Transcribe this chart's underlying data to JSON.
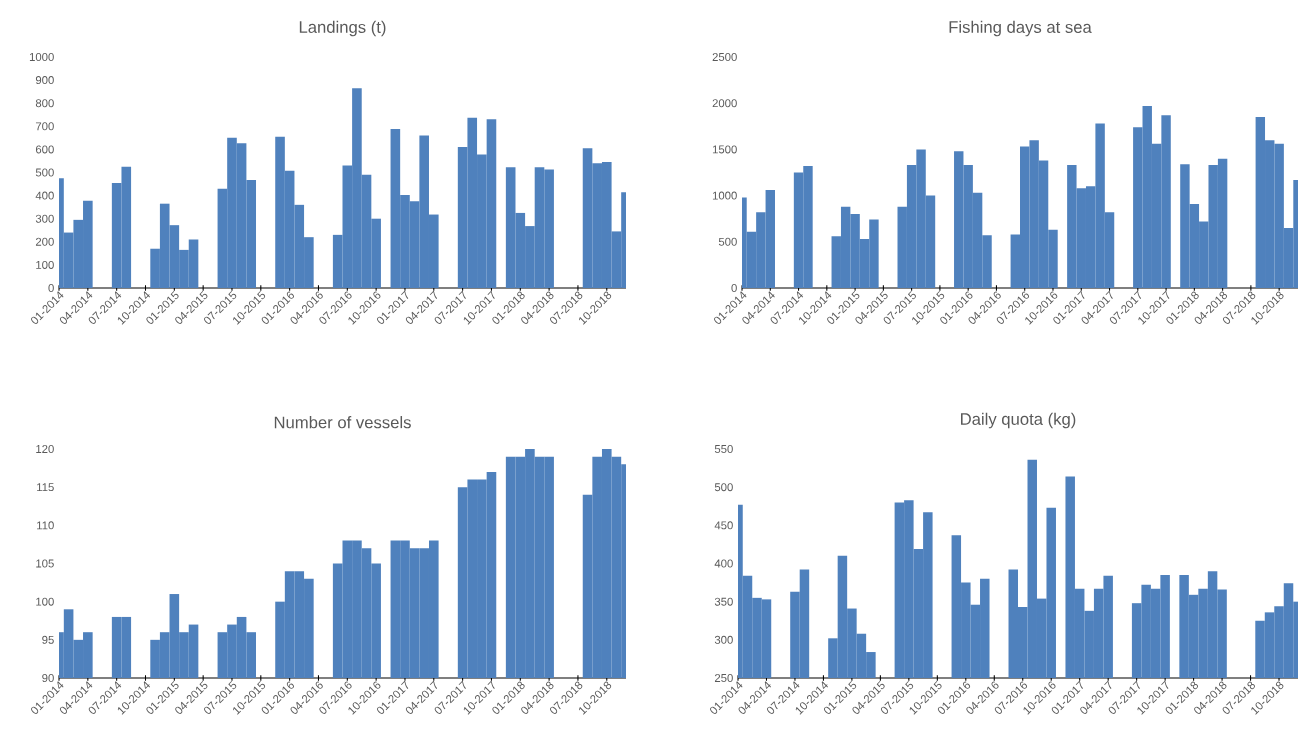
{
  "chart_data": [
    {
      "type": "bar",
      "title": "Landings (t)",
      "color": "#4f81bd",
      "ylim": [
        0,
        1000
      ],
      "yticks": [
        0,
        100,
        200,
        300,
        400,
        500,
        600,
        700,
        800,
        900,
        1000
      ],
      "categories": [
        "01-2014",
        null,
        null,
        "04-2014",
        null,
        null,
        "07-2014",
        null,
        null,
        "10-2014",
        null,
        null,
        "01-2015",
        null,
        null,
        "04-2015",
        null,
        null,
        "07-2015",
        null,
        null,
        "10-2015",
        null,
        null,
        "01-2016",
        null,
        null,
        "04-2016",
        null,
        null,
        "07-2016",
        null,
        null,
        "10-2016",
        null,
        null,
        "01-2017",
        null,
        null,
        "04-2017",
        null,
        null,
        "07-2017",
        null,
        null,
        "10-2017",
        null,
        null,
        "01-2018",
        null,
        null,
        "04-2018",
        null,
        null,
        "07-2018",
        null,
        null,
        "10-2018",
        null,
        null
      ],
      "values": [
        475,
        240,
        295,
        378,
        null,
        null,
        455,
        525,
        null,
        null,
        170,
        365,
        272,
        165,
        210,
        null,
        null,
        430,
        650,
        627,
        468,
        null,
        null,
        655,
        508,
        360,
        220,
        null,
        null,
        230,
        530,
        865,
        490,
        300,
        null,
        688,
        403,
        375,
        660,
        318,
        null,
        null,
        610,
        737,
        578,
        730,
        null,
        523,
        325,
        268,
        523,
        513,
        null,
        null,
        null,
        605,
        540,
        545,
        245,
        415
      ]
    },
    {
      "type": "bar",
      "title": "Fishing days at sea",
      "color": "#4f81bd",
      "ylim": [
        0,
        2500
      ],
      "yticks": [
        0,
        500,
        1000,
        1500,
        2000,
        2500
      ],
      "categories": [
        "01-2014",
        null,
        null,
        "04-2014",
        null,
        null,
        "07-2014",
        null,
        null,
        "10-2014",
        null,
        null,
        "01-2015",
        null,
        null,
        "04-2015",
        null,
        null,
        "07-2015",
        null,
        null,
        "10-2015",
        null,
        null,
        "01-2016",
        null,
        null,
        "04-2016",
        null,
        null,
        "07-2016",
        null,
        null,
        "10-2016",
        null,
        null,
        "01-2017",
        null,
        null,
        "04-2017",
        null,
        null,
        "07-2017",
        null,
        null,
        "10-2017",
        null,
        null,
        "01-2018",
        null,
        null,
        "04-2018",
        null,
        null,
        "07-2018",
        null,
        null,
        "10-2018",
        null,
        null
      ],
      "values": [
        980,
        610,
        820,
        1060,
        null,
        null,
        1250,
        1320,
        null,
        null,
        560,
        880,
        800,
        530,
        740,
        null,
        null,
        880,
        1330,
        1500,
        1000,
        null,
        null,
        1480,
        1330,
        1030,
        570,
        null,
        null,
        580,
        1530,
        1600,
        1380,
        630,
        null,
        1330,
        1080,
        1100,
        1780,
        820,
        null,
        null,
        1740,
        1970,
        1560,
        1870,
        null,
        1340,
        910,
        720,
        1330,
        1400,
        null,
        null,
        null,
        1850,
        1600,
        1560,
        650,
        1170
      ]
    },
    {
      "type": "bar",
      "title": "Number of vessels",
      "color": "#4f81bd",
      "ylim": [
        90,
        120
      ],
      "yticks": [
        90,
        95,
        100,
        105,
        110,
        115,
        120
      ],
      "categories": [
        "01-2014",
        null,
        null,
        "04-2014",
        null,
        null,
        "07-2014",
        null,
        null,
        "10-2014",
        null,
        null,
        "01-2015",
        null,
        null,
        "04-2015",
        null,
        null,
        "07-2015",
        null,
        null,
        "10-2015",
        null,
        null,
        "01-2016",
        null,
        null,
        "04-2016",
        null,
        null,
        "07-2016",
        null,
        null,
        "10-2016",
        null,
        null,
        "01-2017",
        null,
        null,
        "04-2017",
        null,
        null,
        "07-2017",
        null,
        null,
        "10-2017",
        null,
        null,
        "01-2018",
        null,
        null,
        "04-2018",
        null,
        null,
        "07-2018",
        null,
        null,
        "10-2018",
        null,
        null
      ],
      "values": [
        96,
        99,
        95,
        96,
        null,
        null,
        98,
        98,
        null,
        null,
        95,
        96,
        101,
        96,
        97,
        null,
        null,
        96,
        97,
        98,
        96,
        null,
        null,
        100,
        104,
        104,
        103,
        null,
        null,
        105,
        108,
        108,
        107,
        105,
        null,
        108,
        108,
        107,
        107,
        108,
        null,
        null,
        115,
        116,
        116,
        117,
        null,
        119,
        119,
        120,
        119,
        119,
        null,
        null,
        null,
        114,
        119,
        120,
        119,
        118
      ]
    },
    {
      "type": "bar",
      "title": "Daily quota (kg)",
      "color": "#4f81bd",
      "ylim": [
        250,
        550
      ],
      "yticks": [
        250,
        300,
        350,
        400,
        450,
        500,
        550
      ],
      "categories": [
        "01-2014",
        null,
        null,
        "04-2014",
        null,
        null,
        "07-2014",
        null,
        null,
        "10-2014",
        null,
        null,
        "01-2015",
        null,
        null,
        "04-2015",
        null,
        null,
        "07-2015",
        null,
        null,
        "10-2015",
        null,
        null,
        "01-2016",
        null,
        null,
        "04-2016",
        null,
        null,
        "07-2016",
        null,
        null,
        "10-2016",
        null,
        null,
        "01-2017",
        null,
        null,
        "04-2017",
        null,
        null,
        "07-2017",
        null,
        null,
        "10-2017",
        null,
        null,
        "01-2018",
        null,
        null,
        "04-2018",
        null,
        null,
        "07-2018",
        null,
        null,
        "10-2018",
        null,
        null
      ],
      "values": [
        477,
        384,
        355,
        353,
        null,
        null,
        363,
        392,
        null,
        null,
        302,
        410,
        341,
        308,
        284,
        null,
        null,
        480,
        483,
        419,
        467,
        null,
        null,
        437,
        375,
        346,
        380,
        null,
        null,
        392,
        343,
        536,
        354,
        473,
        null,
        514,
        367,
        338,
        367,
        384,
        null,
        null,
        348,
        372,
        367,
        385,
        null,
        385,
        359,
        367,
        390,
        366,
        null,
        null,
        null,
        325,
        336,
        344,
        374,
        350
      ]
    }
  ]
}
